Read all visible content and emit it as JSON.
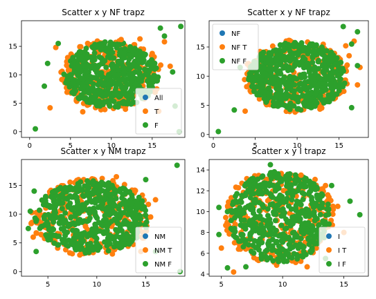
{
  "colors": {
    "blue": "#1f77b4",
    "orange": "#ff7f0e",
    "green": "#2ca02c"
  },
  "chart_data": [
    {
      "type": "scatter",
      "title": "Scatter x y NF trapz",
      "xlim": [
        -1,
        19
      ],
      "ylim": [
        -1,
        19.5
      ],
      "xticks": [
        0,
        5,
        10,
        15
      ],
      "yticks": [
        0,
        5,
        10,
        15
      ],
      "legend": "lower-right",
      "cloud": {
        "x_range": [
          4,
          16
        ],
        "y_range": [
          4,
          16
        ]
      },
      "series": [
        {
          "name": "All",
          "color": "#1f77b4",
          "points": []
        },
        {
          "name": "T",
          "color": "#ff7f0e",
          "points": [
            [
              2.5,
              4.2
            ],
            [
              16.5,
              15.8
            ],
            [
              17.2,
              11.5
            ],
            [
              15.8,
              3.6
            ],
            [
              3.2,
              14.8
            ],
            [
              13.5,
              16.3
            ],
            [
              6.5,
              3.5
            ],
            [
              11.2,
              16.2
            ]
          ]
        },
        {
          "name": "F",
          "color": "#2ca02c",
          "points": [
            [
              0.7,
              0.5
            ],
            [
              18.5,
              18.5
            ],
            [
              16,
              18.2
            ],
            [
              18.3,
              0
            ],
            [
              17.5,
              10.5
            ],
            [
              2.2,
              12
            ],
            [
              17.8,
              4.5
            ],
            [
              16.5,
              16.8
            ],
            [
              3.5,
              15.5
            ],
            [
              1.8,
              8
            ]
          ]
        }
      ]
    },
    {
      "type": "scatter",
      "title": "Scatter x y NF trapz",
      "xlim": [
        -0.5,
        18.5
      ],
      "ylim": [
        -0.5,
        19.5
      ],
      "xticks": [
        0,
        5,
        10,
        15
      ],
      "yticks": [
        0,
        5,
        10,
        15
      ],
      "legend": "upper-left",
      "cloud": {
        "x_range": [
          4,
          16
        ],
        "y_range": [
          4,
          16
        ]
      },
      "series": [
        {
          "name": "NF",
          "color": "#1f77b4",
          "points": []
        },
        {
          "name": "NF T",
          "color": "#ff7f0e",
          "points": [
            [
              17.5,
              11.5
            ],
            [
              17.2,
              8.5
            ],
            [
              16.8,
              16
            ],
            [
              16.2,
              13.5
            ],
            [
              3.8,
              4
            ],
            [
              15.8,
              15.2
            ]
          ]
        },
        {
          "name": "NF F",
          "color": "#2ca02c",
          "points": [
            [
              0.6,
              0.5
            ],
            [
              15.5,
              18.5
            ],
            [
              17.2,
              17.6
            ],
            [
              17.2,
              11.8
            ],
            [
              16.5,
              4.6
            ],
            [
              2.5,
              4.2
            ],
            [
              16.5,
              15.5
            ],
            [
              3.2,
              11.5
            ]
          ]
        }
      ]
    },
    {
      "type": "scatter",
      "title": "Scatter x y NM trapz",
      "xlim": [
        2.3,
        19
      ],
      "ylim": [
        -0.8,
        19.5
      ],
      "xticks": [
        5,
        10,
        15
      ],
      "yticks": [
        0,
        5,
        10,
        15
      ],
      "legend": "lower-right",
      "cloud": {
        "x_range": [
          3.5,
          15.5
        ],
        "y_range": [
          3,
          16
        ]
      },
      "series": [
        {
          "name": "NM",
          "color": "#1f77b4",
          "points": []
        },
        {
          "name": "NM T",
          "color": "#ff7f0e",
          "points": [
            [
              16,
              12.5
            ],
            [
              15.5,
              9.5
            ],
            [
              14.5,
              3.5
            ],
            [
              3.5,
              6
            ],
            [
              12,
              16.5
            ]
          ]
        },
        {
          "name": "NM F",
          "color": "#2ca02c",
          "points": [
            [
              18.2,
              18.5
            ],
            [
              18.5,
              0
            ],
            [
              3.2,
              10.5
            ],
            [
              3,
              7.5
            ],
            [
              3.6,
              14
            ],
            [
              16,
              3.5
            ],
            [
              3.8,
              3.5
            ],
            [
              15,
              16
            ]
          ]
        }
      ]
    },
    {
      "type": "scatter",
      "title": "Scatter x y I trapz",
      "xlim": [
        4,
        17
      ],
      "ylim": [
        3.8,
        15
      ],
      "xticks": [
        5,
        10,
        15
      ],
      "yticks": [
        4,
        6,
        8,
        10,
        12,
        14
      ],
      "legend": "lower-right",
      "cloud": {
        "x_range": [
          5.5,
          14
        ],
        "y_range": [
          5,
          14
        ]
      },
      "series": [
        {
          "name": "I",
          "color": "#1f77b4",
          "points": []
        },
        {
          "name": "I T",
          "color": "#ff7f0e",
          "points": [
            [
              15,
              8
            ],
            [
              14.5,
              10.5
            ],
            [
              5,
              6.5
            ],
            [
              6,
              4.2
            ],
            [
              12,
              4.7
            ],
            [
              13.5,
              12.5
            ],
            [
              11.5,
              13.5
            ]
          ]
        },
        {
          "name": "I F",
          "color": "#2ca02c",
          "points": [
            [
              16.3,
              9.7
            ],
            [
              4.8,
              10.4
            ],
            [
              5.5,
              4.6
            ],
            [
              4.8,
              7.8
            ],
            [
              5.5,
              10
            ],
            [
              7,
              4.7
            ],
            [
              14,
              12.5
            ],
            [
              15.5,
              11
            ],
            [
              9,
              14.5
            ],
            [
              13.5,
              5.5
            ]
          ]
        }
      ]
    }
  ]
}
